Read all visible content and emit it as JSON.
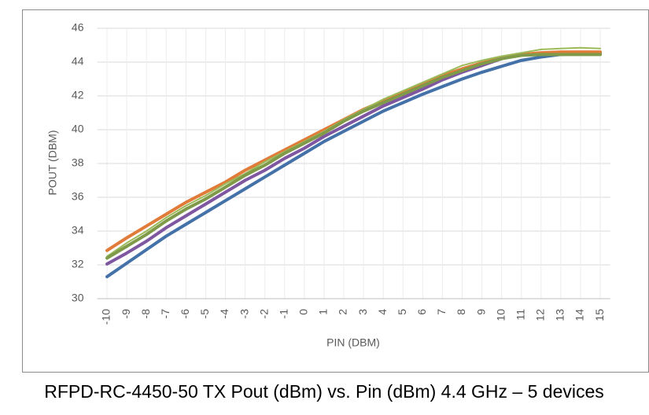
{
  "chart_data": {
    "type": "line",
    "title": "RFPD-RC-4450-50 TX Pout (dBm) vs. Pin (dBm) 4.4 GHz – 5 devices",
    "x_label": "PIN (DBM)",
    "y_label": "POUT (DBM)",
    "x": [
      -10,
      -9,
      -8,
      -7,
      -6,
      -5,
      -4,
      -3,
      -2,
      -1,
      0,
      1,
      2,
      3,
      4,
      5,
      6,
      7,
      8,
      9,
      10,
      11,
      12,
      13,
      14,
      15
    ],
    "xlim": [
      -10.5,
      15.5
    ],
    "xticks": [
      -10,
      -9,
      -8,
      -7,
      -6,
      -5,
      -4,
      -3,
      -2,
      -1,
      0,
      1,
      2,
      3,
      4,
      5,
      6,
      7,
      8,
      9,
      10,
      11,
      12,
      13,
      14,
      15
    ],
    "ylim": [
      30,
      46
    ],
    "yticks": [
      30,
      32,
      34,
      36,
      38,
      40,
      42,
      44,
      46
    ],
    "grid": true,
    "series": [
      {
        "color": "#4472a8",
        "width": 4,
        "values": [
          31.3,
          32.1,
          32.9,
          33.7,
          34.4,
          35.1,
          35.8,
          36.5,
          37.2,
          37.9,
          38.6,
          39.3,
          39.9,
          40.5,
          41.1,
          41.6,
          42.1,
          42.55,
          43.0,
          43.4,
          43.75,
          44.1,
          44.3,
          44.45,
          44.5,
          44.5
        ]
      },
      {
        "color": "#e07b39",
        "width": 4,
        "values": [
          32.85,
          33.6,
          34.3,
          35.0,
          35.7,
          36.3,
          36.9,
          37.6,
          38.2,
          38.8,
          39.4,
          40.0,
          40.6,
          41.2,
          41.7,
          42.2,
          42.7,
          43.2,
          43.6,
          43.95,
          44.25,
          44.45,
          44.55,
          44.6,
          44.6,
          44.6
        ]
      },
      {
        "color": "#9bbb59",
        "width": 2,
        "values": [
          32.5,
          33.3,
          34.0,
          34.8,
          35.5,
          36.1,
          36.8,
          37.4,
          38.1,
          38.7,
          39.3,
          39.9,
          40.6,
          41.2,
          41.8,
          42.3,
          42.8,
          43.3,
          43.8,
          44.1,
          44.35,
          44.55,
          44.75,
          44.8,
          44.85,
          44.8
        ]
      },
      {
        "color": "#7e57a0",
        "width": 4,
        "values": [
          32.05,
          32.7,
          33.4,
          34.2,
          34.9,
          35.6,
          36.3,
          37.0,
          37.6,
          38.3,
          38.9,
          39.6,
          40.2,
          40.8,
          41.4,
          41.9,
          42.4,
          42.95,
          43.4,
          43.8,
          44.2,
          null,
          null,
          null,
          null,
          null
        ]
      },
      {
        "color": "#7f9a48",
        "width": 4,
        "values": [
          32.4,
          33.1,
          33.8,
          34.6,
          35.3,
          35.9,
          36.6,
          37.3,
          37.9,
          38.6,
          39.2,
          39.8,
          40.5,
          41.1,
          41.6,
          42.1,
          42.6,
          43.1,
          43.5,
          43.9,
          44.2,
          44.4,
          44.45,
          44.45,
          44.45,
          44.45
        ]
      }
    ]
  }
}
